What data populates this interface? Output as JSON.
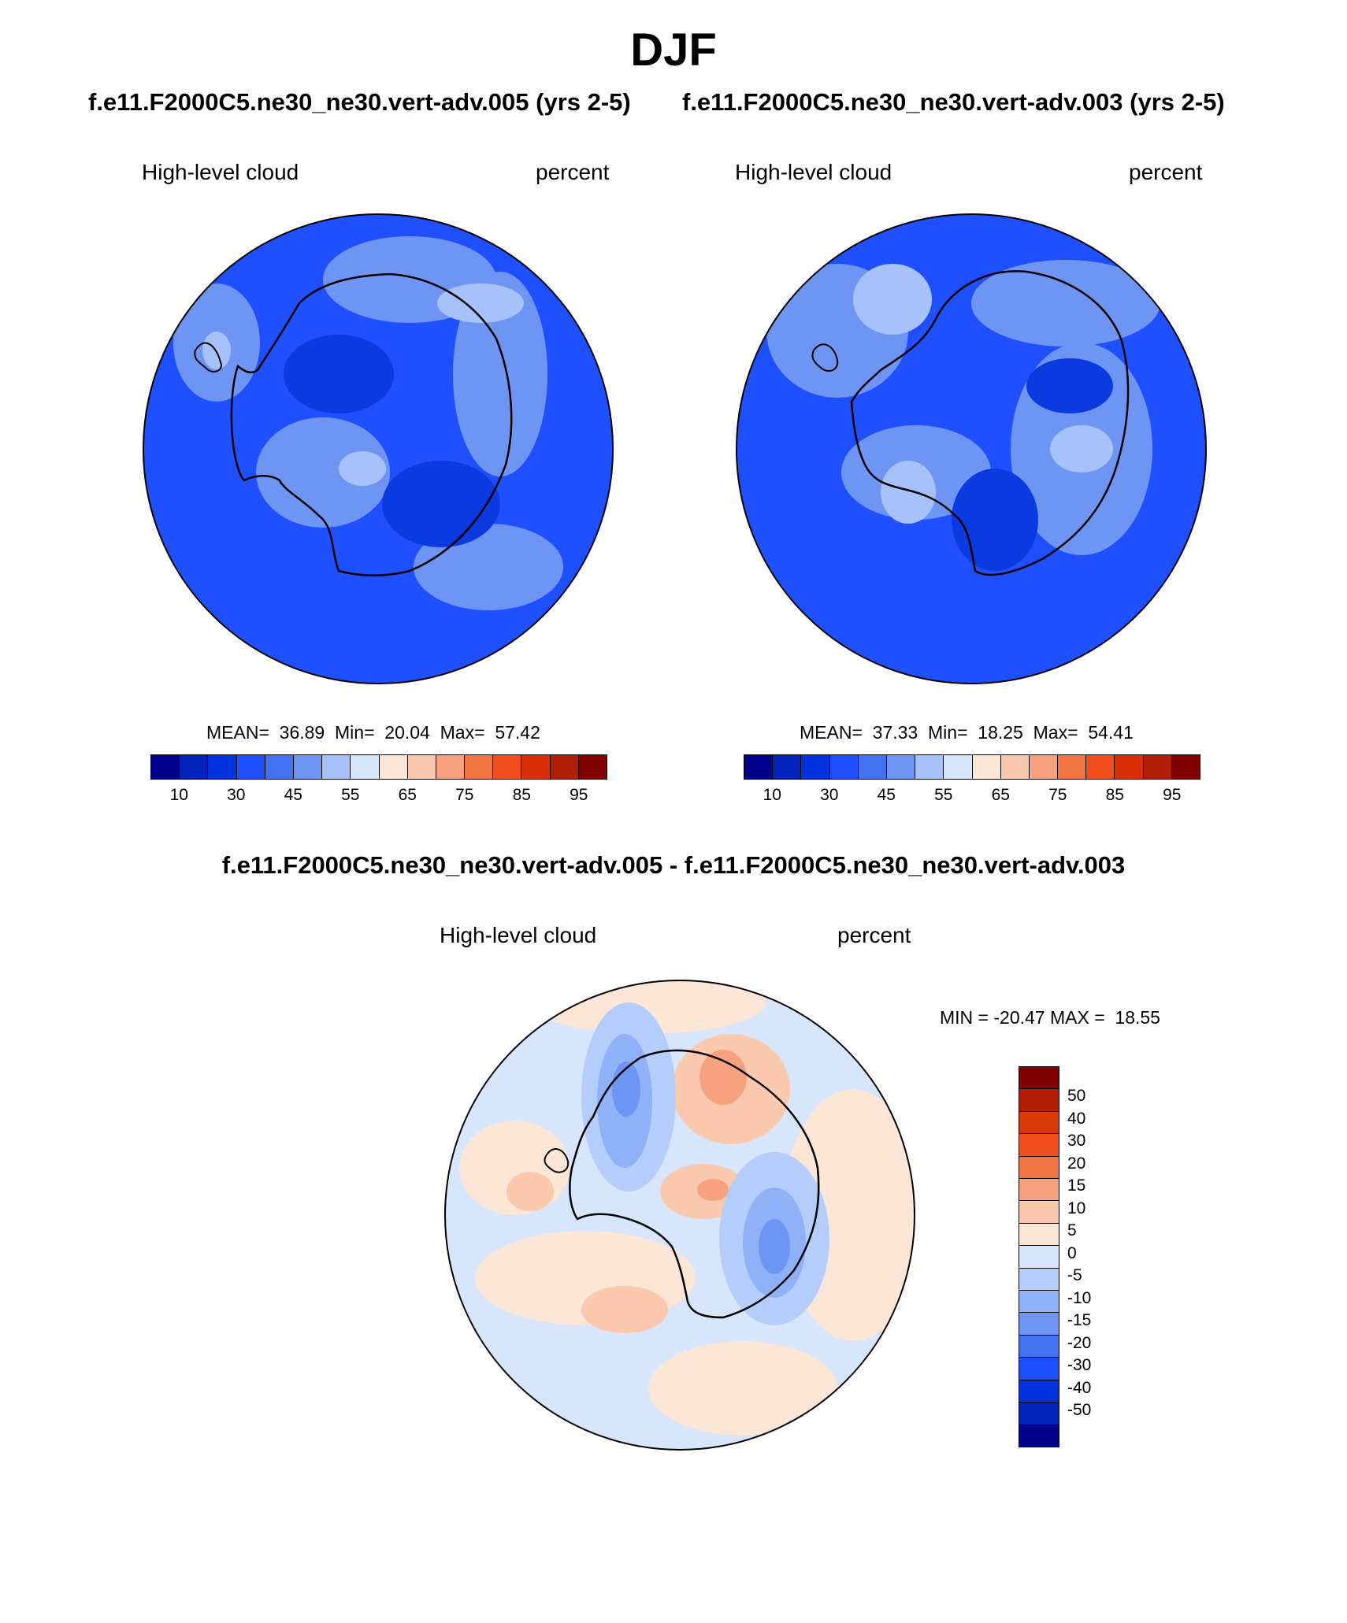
{
  "title": "DJF",
  "panel_left": {
    "header": "f.e11.F2000C5.ne30_ne30.vert-adv.005 (yrs 2-5)",
    "variable": "High-level cloud",
    "units": "percent",
    "stats": {
      "mean_label": "MEAN=",
      "mean": "36.89",
      "min_label": "Min=",
      "min": "20.04",
      "max_label": "Max=",
      "max": "57.42"
    }
  },
  "panel_right": {
    "header": "f.e11.F2000C5.ne30_ne30.vert-adv.003 (yrs 2-5)",
    "variable": "High-level cloud",
    "units": "percent",
    "stats": {
      "mean_label": "MEAN=",
      "mean": "37.33",
      "min_label": "Min=",
      "min": "18.25",
      "max_label": "Max=",
      "max": "54.41"
    }
  },
  "panel_diff": {
    "header": "f.e11.F2000C5.ne30_ne30.vert-adv.005 - f.e11.F2000C5.ne30_ne30.vert-adv.003",
    "variable": "High-level cloud",
    "units": "percent",
    "minmax": "MIN = -20.47 MAX =  18.55"
  },
  "abs_colorbar": {
    "colors": [
      "#00008b",
      "#0022bb",
      "#0033dd",
      "#1e50ff",
      "#4272ef",
      "#6f95f4",
      "#a7c2fb",
      "#d7e6fc",
      "#fce6d6",
      "#fbc9ae",
      "#f6a27e",
      "#f27545",
      "#f04e1d",
      "#da2e05",
      "#b31e06",
      "#7f0000"
    ],
    "ticks": [
      "10",
      "30",
      "45",
      "55",
      "65",
      "75",
      "85",
      "95"
    ]
  },
  "diff_colorbar": {
    "colors": [
      "#7f0000",
      "#b31e06",
      "#da3a08",
      "#f04e1d",
      "#f27545",
      "#f6a27e",
      "#fbc9ae",
      "#fce6d6",
      "#d7e6fc",
      "#b4cdfb",
      "#8fb1f7",
      "#6f95f4",
      "#4272ef",
      "#1e50ff",
      "#0033dd",
      "#0022bb",
      "#00008b"
    ],
    "ticks": [
      "50",
      "40",
      "30",
      "20",
      "15",
      "10",
      "5",
      "0",
      "-5",
      "-10",
      "-15",
      "-20",
      "-30",
      "-40",
      "-50"
    ]
  },
  "map_colors": {
    "abs_background": "#1f50ff",
    "abs_light": "#6f95f4",
    "abs_lighter": "#a7c2fb",
    "abs_dark": "#0a3ae0",
    "diff_background": "#d7e6fc",
    "diff_warm": "#fce6d6",
    "diff_warm2": "#fbc9ae",
    "diff_warm3": "#f6a27e",
    "diff_cool": "#b4cdfb",
    "diff_cool2": "#8fb1f7",
    "diff_cool3": "#6f95f4"
  }
}
